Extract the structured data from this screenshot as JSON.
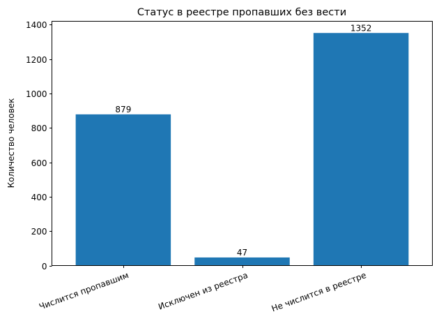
{
  "chart_data": {
    "type": "bar",
    "title": "Статус в реестре пропавших без вести",
    "xlabel": "",
    "ylabel": "Количество человек",
    "categories": [
      "Числится пропавшим",
      "Исключен из реестра",
      "Не числится в реестре"
    ],
    "values": [
      879,
      47,
      1352
    ],
    "data_labels": [
      "879",
      "47",
      "1352"
    ],
    "ylim": [
      0,
      1420
    ],
    "yticks": [
      0,
      200,
      400,
      600,
      800,
      1000,
      1200,
      1400
    ],
    "ytick_labels": [
      "0",
      "200",
      "400",
      "600",
      "800",
      "1000",
      "1200",
      "1400"
    ],
    "xtick_rotation": 20,
    "grid": false,
    "legend": null,
    "bar_color": "#1f77b4"
  }
}
